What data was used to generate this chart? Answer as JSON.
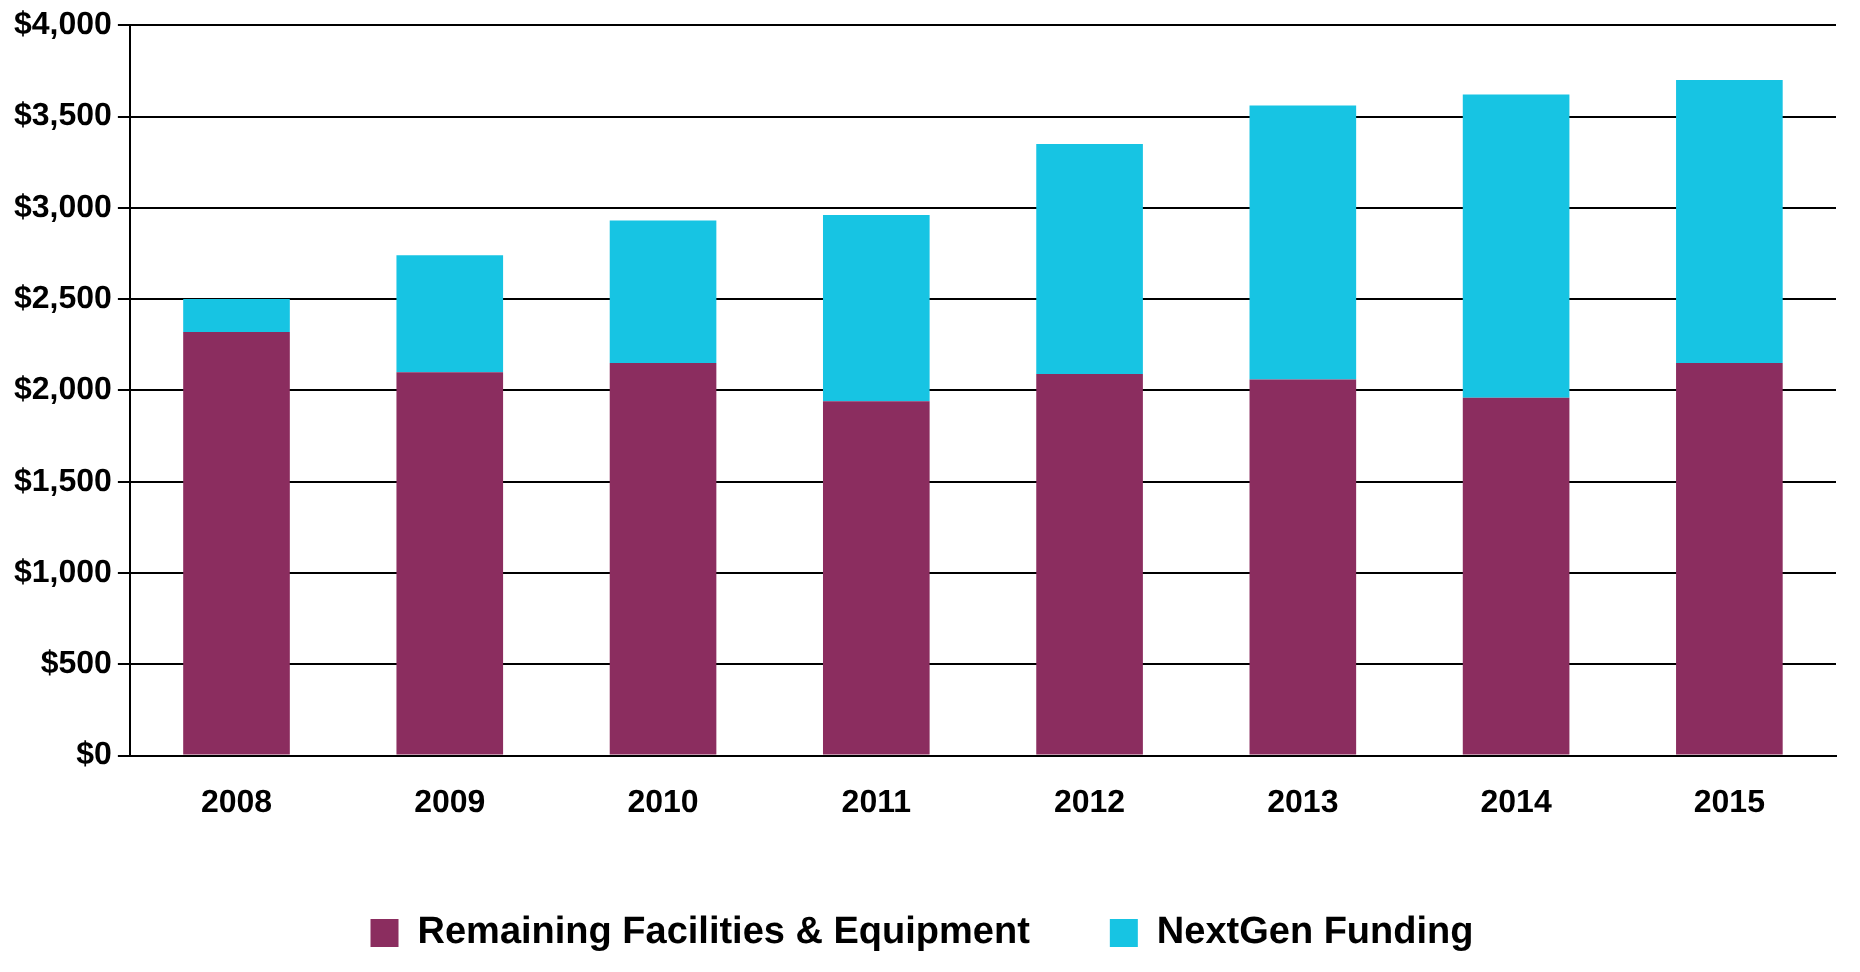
{
  "chart_data": {
    "type": "bar",
    "stacked": true,
    "categories": [
      "2008",
      "2009",
      "2010",
      "2011",
      "2012",
      "2013",
      "2014",
      "2015"
    ],
    "series": [
      {
        "name": "Remaining Facilities & Equipment",
        "color": "#8b2d5f",
        "values": [
          2320,
          2100,
          2150,
          1940,
          2090,
          2060,
          1960,
          2150
        ]
      },
      {
        "name": "NextGen Funding",
        "color": "#17c4e3",
        "values": [
          180,
          640,
          780,
          1020,
          1260,
          1500,
          1660,
          1550
        ]
      }
    ],
    "ylim": [
      0,
      4000
    ],
    "yticks": [
      {
        "value": 0,
        "label": "$0"
      },
      {
        "value": 500,
        "label": "$500"
      },
      {
        "value": 1000,
        "label": "$1,000"
      },
      {
        "value": 1500,
        "label": "$1,500"
      },
      {
        "value": 2000,
        "label": "$2,000"
      },
      {
        "value": 2500,
        "label": "$2,500"
      },
      {
        "value": 3000,
        "label": "$3,000"
      },
      {
        "value": 3500,
        "label": "$3,500"
      },
      {
        "value": 4000,
        "label": "$4,000"
      }
    ],
    "grid": "y",
    "legend": "bottom"
  }
}
